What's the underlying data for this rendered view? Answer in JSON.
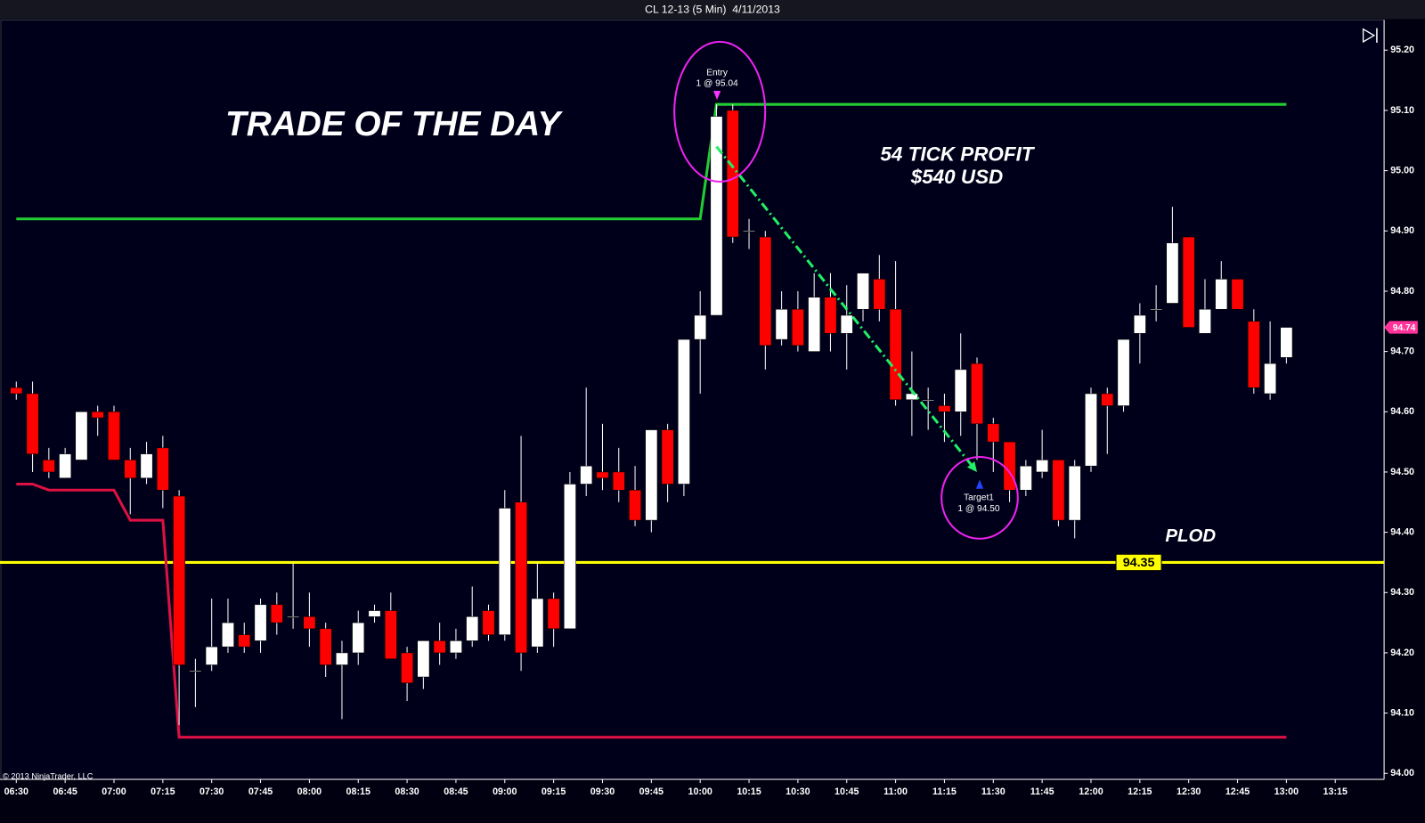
{
  "chart_data": {
    "type": "candlestick",
    "title": "CL 12-13 (5 Min)  4/11/2013",
    "footer": "© 2013 NinjaTrader, LLC",
    "annotations": [
      "TRADE OF THE DAY",
      "54 TICK PROFIT",
      "$540 USD",
      "PLOD",
      "Entry",
      "1 @ 95.04",
      "Target1",
      "1 @ 94.50"
    ],
    "up_color": "#ffffff",
    "down_color": "#ff0000",
    "x": [
      "06:30",
      "06:35",
      "06:40",
      "06:45",
      "06:50",
      "06:55",
      "07:00",
      "07:05",
      "07:10",
      "07:15",
      "07:20",
      "07:25",
      "07:30",
      "07:35",
      "07:40",
      "07:45",
      "07:50",
      "07:55",
      "08:00",
      "08:05",
      "08:10",
      "08:15",
      "08:20",
      "08:25",
      "08:30",
      "08:35",
      "08:40",
      "08:45",
      "08:50",
      "08:55",
      "09:00",
      "09:05",
      "09:10",
      "09:15",
      "09:20",
      "09:25",
      "09:30",
      "09:35",
      "09:40",
      "09:45",
      "09:50",
      "09:55",
      "10:00",
      "10:05",
      "10:10",
      "10:15",
      "10:20",
      "10:25",
      "10:30",
      "10:35",
      "10:40",
      "10:45",
      "10:50",
      "10:55",
      "11:00",
      "11:05",
      "11:10",
      "11:15",
      "11:20",
      "11:25",
      "11:30",
      "11:35",
      "11:40",
      "11:45",
      "11:50",
      "11:55",
      "12:00",
      "12:05",
      "12:10",
      "12:15",
      "12:20",
      "12:25",
      "12:30",
      "12:35",
      "12:40",
      "12:45",
      "12:50",
      "12:55",
      "13:00"
    ],
    "open": [
      94.64,
      94.63,
      94.52,
      94.49,
      94.52,
      94.6,
      94.6,
      94.52,
      94.49,
      94.54,
      94.46,
      94.17,
      94.18,
      94.21,
      94.23,
      94.22,
      94.28,
      94.26,
      94.26,
      94.24,
      94.18,
      94.2,
      94.26,
      94.27,
      94.2,
      94.16,
      94.22,
      94.2,
      94.22,
      94.27,
      94.23,
      94.45,
      94.21,
      94.29,
      94.24,
      94.48,
      94.5,
      94.5,
      94.47,
      94.42,
      94.57,
      94.48,
      94.72,
      94.76,
      95.1,
      94.9,
      94.89,
      94.72,
      94.77,
      94.7,
      94.79,
      94.73,
      94.77,
      94.82,
      94.77,
      94.62,
      94.62,
      94.61,
      94.6,
      94.68,
      94.58,
      94.55,
      94.47,
      94.5,
      94.52,
      94.42,
      94.51,
      94.63,
      94.61,
      94.73,
      94.77,
      94.78,
      94.89,
      94.73,
      94.77,
      94.82,
      94.75,
      94.63,
      94.69
    ],
    "high": [
      94.65,
      94.65,
      94.54,
      94.54,
      94.6,
      94.61,
      94.61,
      94.54,
      94.55,
      94.56,
      94.47,
      94.19,
      94.29,
      94.29,
      94.25,
      94.29,
      94.3,
      94.35,
      94.3,
      94.25,
      94.22,
      94.27,
      94.28,
      94.3,
      94.21,
      94.22,
      94.25,
      94.24,
      94.31,
      94.28,
      94.47,
      94.56,
      94.35,
      94.3,
      94.5,
      94.64,
      94.58,
      94.54,
      94.51,
      94.57,
      94.58,
      94.72,
      94.8,
      95.11,
      95.11,
      94.92,
      94.9,
      94.8,
      94.8,
      94.83,
      94.83,
      94.81,
      94.83,
      94.86,
      94.85,
      94.7,
      94.64,
      94.63,
      94.73,
      94.69,
      94.59,
      94.55,
      94.52,
      94.57,
      94.52,
      94.52,
      94.64,
      94.64,
      94.72,
      94.78,
      94.81,
      94.94,
      94.89,
      94.82,
      94.85,
      94.82,
      94.77,
      94.75,
      94.74
    ],
    "low": [
      94.62,
      94.5,
      94.49,
      94.49,
      94.52,
      94.56,
      94.52,
      94.43,
      94.48,
      94.44,
      94.08,
      94.11,
      94.17,
      94.2,
      94.2,
      94.2,
      94.23,
      94.24,
      94.21,
      94.16,
      94.09,
      94.18,
      94.25,
      94.19,
      94.12,
      94.14,
      94.18,
      94.19,
      94.21,
      94.22,
      94.22,
      94.17,
      94.2,
      94.21,
      94.24,
      94.46,
      94.47,
      94.45,
      94.41,
      94.4,
      94.45,
      94.46,
      94.63,
      94.76,
      94.88,
      94.87,
      94.67,
      94.71,
      94.7,
      94.7,
      94.7,
      94.67,
      94.75,
      94.75,
      94.61,
      94.56,
      94.57,
      94.55,
      94.56,
      94.52,
      94.5,
      94.45,
      94.46,
      94.49,
      94.41,
      94.39,
      94.5,
      94.53,
      94.6,
      94.68,
      94.75,
      94.78,
      94.74,
      94.73,
      94.77,
      94.77,
      94.63,
      94.62,
      94.68
    ],
    "close": [
      94.63,
      94.53,
      94.5,
      94.53,
      94.6,
      94.59,
      94.52,
      94.49,
      94.53,
      94.47,
      94.18,
      94.17,
      94.21,
      94.25,
      94.21,
      94.28,
      94.25,
      94.26,
      94.24,
      94.18,
      94.2,
      94.25,
      94.27,
      94.19,
      94.15,
      94.22,
      94.2,
      94.22,
      94.26,
      94.23,
      94.44,
      94.2,
      94.29,
      94.24,
      94.48,
      94.51,
      94.49,
      94.47,
      94.42,
      94.57,
      94.48,
      94.72,
      94.76,
      95.09,
      94.89,
      94.9,
      94.71,
      94.77,
      94.71,
      94.79,
      94.73,
      94.76,
      94.83,
      94.77,
      94.62,
      94.63,
      94.62,
      94.6,
      94.67,
      94.58,
      94.55,
      94.47,
      94.51,
      94.52,
      94.42,
      94.51,
      94.63,
      94.61,
      94.72,
      94.76,
      94.77,
      94.88,
      94.74,
      94.77,
      94.82,
      94.77,
      94.64,
      94.68,
      94.74
    ],
    "lines": [
      {
        "color": "#22cc33",
        "x": [
          "06:30",
          "10:00",
          "10:05",
          "13:00"
        ],
        "values": [
          94.92,
          94.92,
          95.11,
          95.11
        ]
      },
      {
        "color": "#dd1144",
        "x": [
          "06:30",
          "06:35",
          "06:40",
          "07:00",
          "07:05",
          "07:15",
          "07:20",
          "13:00"
        ],
        "values": [
          94.48,
          94.48,
          94.47,
          94.47,
          94.42,
          94.42,
          94.06,
          94.06
        ]
      }
    ],
    "trade": {
      "color": "#22ee66",
      "x": [
        "10:05",
        "11:25"
      ],
      "values": [
        95.04,
        94.5
      ]
    },
    "hline": {
      "value": 94.35,
      "color": "#ffff00"
    },
    "last_price": 94.74,
    "last_price_color": "#ff3399",
    "xlim": [
      "06:25",
      "13:30"
    ],
    "ylim": [
      93.99,
      95.25
    ],
    "xticks": [
      "06:30",
      "06:45",
      "07:00",
      "07:15",
      "07:30",
      "07:45",
      "08:00",
      "08:15",
      "08:30",
      "08:45",
      "09:00",
      "09:15",
      "09:30",
      "09:45",
      "10:00",
      "10:15",
      "10:30",
      "10:45",
      "11:00",
      "11:15",
      "11:30",
      "11:45",
      "12:00",
      "12:15",
      "12:30",
      "12:45",
      "13:00",
      "13:15"
    ],
    "yticks": [
      {
        "value": 94.0,
        "label": "94.00"
      },
      {
        "value": 94.1,
        "label": "94.10"
      },
      {
        "value": 94.2,
        "label": "94.20"
      },
      {
        "value": 94.3,
        "label": "94.30"
      },
      {
        "value": 94.4,
        "label": "94.40"
      },
      {
        "value": 94.5,
        "label": "94.50"
      },
      {
        "value": 94.6,
        "label": "94.60"
      },
      {
        "value": 94.7,
        "label": "94.70"
      },
      {
        "value": 94.8,
        "label": "94.80"
      },
      {
        "value": 94.9,
        "label": "94.90"
      },
      {
        "value": 95.0,
        "label": "95.00"
      },
      {
        "value": 95.1,
        "label": "95.10"
      },
      {
        "value": 95.2,
        "label": "95.20"
      }
    ]
  }
}
